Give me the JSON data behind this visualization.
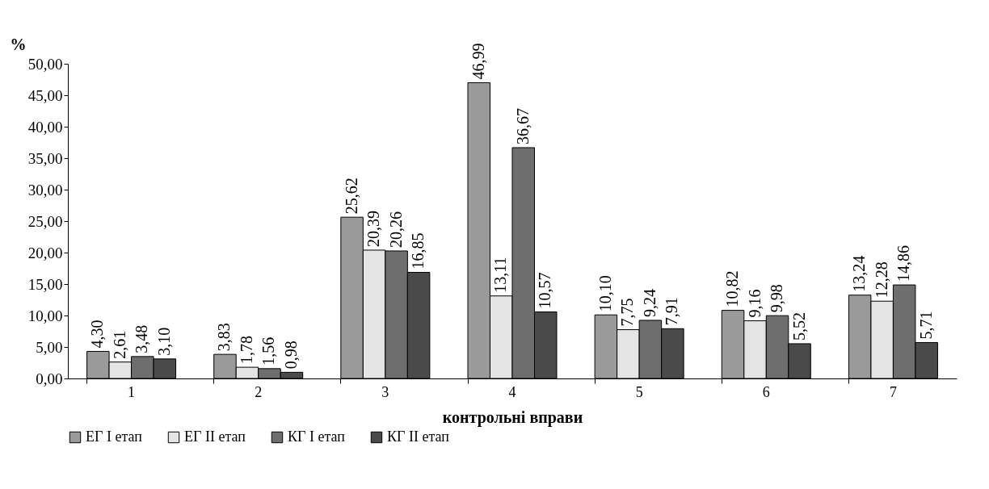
{
  "chart_data": {
    "type": "bar",
    "ylabel": "%",
    "xlabel": "контрольні вправи",
    "categories": [
      "1",
      "2",
      "3",
      "4",
      "5",
      "6",
      "7"
    ],
    "ylim": [
      0,
      50
    ],
    "yticks": [
      {
        "value": 0,
        "label": "0,00"
      },
      {
        "value": 5,
        "label": "5,00"
      },
      {
        "value": 10,
        "label": "10,00"
      },
      {
        "value": 15,
        "label": "15,00"
      },
      {
        "value": 20,
        "label": "20,00"
      },
      {
        "value": 25,
        "label": "25,00"
      },
      {
        "value": 30,
        "label": "30,00"
      },
      {
        "value": 35,
        "label": "35,00"
      },
      {
        "value": 40,
        "label": "40,00"
      },
      {
        "value": 45,
        "label": "45,00"
      },
      {
        "value": 50,
        "label": "50,00"
      }
    ],
    "legend": "bottom",
    "grid": false,
    "series": [
      {
        "name": "ЕГ І етап",
        "color": "#9a9a9a",
        "values": [
          4.3,
          3.83,
          25.62,
          46.99,
          10.1,
          10.82,
          13.24
        ],
        "value_labels": [
          "4,30",
          "3,83",
          "25,62",
          "46,99",
          "10,10",
          "10,82",
          "13,24"
        ]
      },
      {
        "name": "ЕГ ІІ етап",
        "color": "#e4e4e4",
        "values": [
          2.61,
          1.78,
          20.39,
          13.11,
          7.75,
          9.16,
          12.28
        ],
        "value_labels": [
          "2,61",
          "1,78",
          "20,39",
          "13,11",
          "7,75",
          "9,16",
          "12,28"
        ]
      },
      {
        "name": "КГ І етап",
        "color": "#6e6e6e",
        "values": [
          3.48,
          1.56,
          20.26,
          36.67,
          9.24,
          9.98,
          14.86
        ],
        "value_labels": [
          "3,48",
          "1,56",
          "20,26",
          "36,67",
          "9,24",
          "9,98",
          "14,86"
        ]
      },
      {
        "name": "КГ ІІ етап",
        "color": "#4a4a4a",
        "values": [
          3.1,
          0.98,
          16.85,
          10.57,
          7.91,
          5.52,
          5.71
        ],
        "value_labels": [
          "3,10",
          "0,98",
          "16,85",
          "10,57",
          "7,91",
          "5,52",
          "5,71"
        ]
      }
    ]
  }
}
